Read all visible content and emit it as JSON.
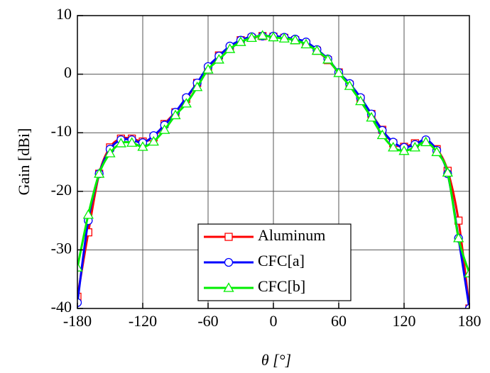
{
  "chart_data": {
    "type": "line",
    "x_label": "θ [°]",
    "y_label": "Gain [dBi]",
    "xlim": [
      -180,
      180
    ],
    "xticks": [
      -180,
      -120,
      -60,
      0,
      60,
      120,
      180
    ],
    "ylim": [
      -40,
      10
    ],
    "yticks": [
      -40,
      -30,
      -20,
      -10,
      0,
      10
    ],
    "grid": true,
    "legend": "lower center",
    "x": [
      -180,
      -170,
      -160,
      -150,
      -140,
      -130,
      -120,
      -110,
      -100,
      -90,
      -80,
      -70,
      -60,
      -50,
      -40,
      -30,
      -20,
      -10,
      0,
      10,
      20,
      30,
      40,
      50,
      60,
      70,
      80,
      90,
      100,
      110,
      120,
      130,
      140,
      150,
      160,
      170,
      180
    ],
    "series": [
      {
        "name": "Aluminum",
        "color": "#ff0000",
        "marker": "square",
        "values": [
          -38,
          -27,
          -17,
          -12.5,
          -11,
          -11,
          -11.5,
          -10.8,
          -8.5,
          -6.5,
          -4.2,
          -1.5,
          1,
          3.2,
          4.5,
          5.8,
          6.2,
          6.5,
          6.4,
          6.2,
          5.8,
          5.2,
          4.0,
          2.4,
          0.3,
          -1.8,
          -4.2,
          -6.8,
          -9.5,
          -11.8,
          -12.4,
          -11.8,
          -11.5,
          -12.8,
          -16.5,
          -25,
          -40
        ]
      },
      {
        "name": "CFC[a]",
        "color": "#0000ff",
        "marker": "circle",
        "values": [
          -39,
          -25,
          -17,
          -12.8,
          -11.2,
          -11.2,
          -11.7,
          -10.5,
          -8.7,
          -6.5,
          -4,
          -1.5,
          1.3,
          3.1,
          4.8,
          5.8,
          6.4,
          6.5,
          6.5,
          6.3,
          6,
          5.5,
          4.2,
          2.6,
          0.3,
          -1.6,
          -4,
          -6.8,
          -9.6,
          -11.6,
          -12.5,
          -12,
          -11.2,
          -13,
          -17,
          -28,
          -40
        ]
      },
      {
        "name": "CFC[b]",
        "color": "#00ee00",
        "marker": "triangle",
        "values": [
          -33,
          -24,
          -17,
          -13.5,
          -11.8,
          -11.7,
          -12.4,
          -11.5,
          -9.5,
          -7,
          -5,
          -2.2,
          0.8,
          2.5,
          4.3,
          5.5,
          6.2,
          6.6,
          6.3,
          6.1,
          5.8,
          5.1,
          4.0,
          2.5,
          0.2,
          -2,
          -4.6,
          -7.4,
          -10.4,
          -12.5,
          -13.1,
          -12.5,
          -11.6,
          -13.3,
          -16.8,
          -28,
          -34
        ]
      }
    ]
  }
}
